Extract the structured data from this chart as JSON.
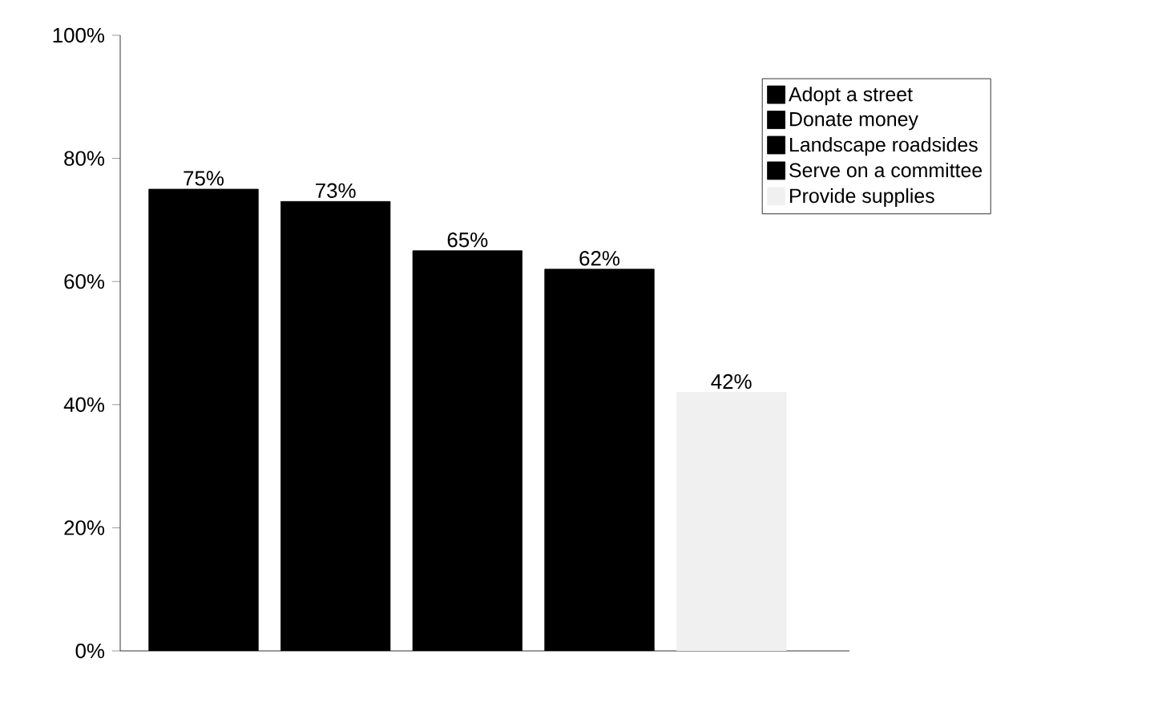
{
  "chart_data": {
    "type": "bar",
    "categories": [
      null
    ],
    "series": [
      {
        "name": "Adopt a street",
        "color": "#000000",
        "values": [
          75
        ],
        "value_labels": [
          "75%"
        ]
      },
      {
        "name": "Donate money",
        "color": "#000000",
        "values": [
          73
        ],
        "value_labels": [
          "73%"
        ]
      },
      {
        "name": "Landscape roadsides",
        "color": "#000000",
        "values": [
          65
        ],
        "value_labels": [
          "65%"
        ]
      },
      {
        "name": "Serve on a committee",
        "color": "#000000",
        "values": [
          62
        ],
        "value_labels": [
          "62%"
        ]
      },
      {
        "name": "Provide supplies",
        "color": "#f0f0f0",
        "values": [
          42
        ],
        "value_labels": [
          "42%"
        ]
      }
    ],
    "ylim": [
      0,
      100
    ],
    "yticks": [
      {
        "value": 0,
        "label": "0%"
      },
      {
        "value": 20,
        "label": "20%"
      },
      {
        "value": 40,
        "label": "40%"
      },
      {
        "value": 60,
        "label": "60%"
      },
      {
        "value": 80,
        "label": "80%"
      },
      {
        "value": 100,
        "label": "100%"
      }
    ],
    "legend": "top right",
    "grid": false
  }
}
